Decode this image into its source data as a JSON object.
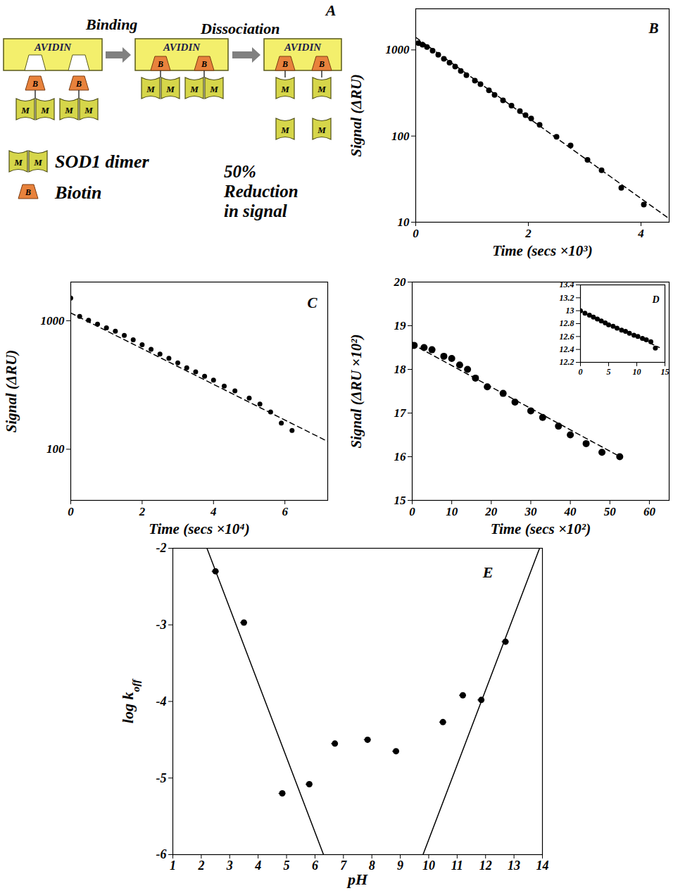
{
  "diagram": {
    "label": "A",
    "steps": [
      "Binding",
      "Dissociation"
    ],
    "protein": "AVIDIN",
    "biotin_mark": "B",
    "monomer_mark": "M",
    "legend": [
      {
        "label": "SOD1 dimer"
      },
      {
        "label": "Biotin"
      }
    ],
    "note": [
      "50%",
      "Reduction",
      "in signal"
    ]
  },
  "chart_data": [
    {
      "title": "B",
      "type": "scatter",
      "xlabel": "Time (secs ×10³)",
      "ylabel": "Signal (ΔRU)",
      "log": "y",
      "grid": false,
      "xlim": [
        0,
        4.5
      ],
      "xticks": [
        0,
        2,
        4
      ],
      "ylim": [
        10,
        3000
      ],
      "yticks": [
        10,
        100,
        1000
      ],
      "series": [
        {
          "type": "scatter",
          "marker": "circle",
          "color": "#000000",
          "x": [
            0.05,
            0.12,
            0.2,
            0.3,
            0.4,
            0.5,
            0.6,
            0.7,
            0.8,
            0.9,
            1.05,
            1.15,
            1.3,
            1.4,
            1.55,
            1.7,
            1.85,
            1.95,
            2.05,
            2.2,
            2.5,
            2.75,
            3.05,
            3.3,
            3.65,
            4.05
          ],
          "values": [
            1200,
            1150,
            1080,
            980,
            880,
            790,
            710,
            640,
            570,
            510,
            440,
            400,
            340,
            300,
            260,
            225,
            195,
            175,
            160,
            135,
            98,
            78,
            53,
            40,
            25,
            16
          ]
        },
        {
          "type": "line",
          "line_style": "dashed",
          "color": "#000000",
          "x": [
            0,
            4.5
          ],
          "values": [
            1400,
            11
          ]
        }
      ]
    },
    {
      "title": "C",
      "type": "scatter",
      "xlabel": "Time (secs ×10⁴)",
      "ylabel": "Signal (ΔRU)",
      "log": "y",
      "grid": false,
      "xlim": [
        0,
        7.2
      ],
      "xticks": [
        0,
        2,
        4,
        6
      ],
      "ylim": [
        40,
        2000
      ],
      "yticks": [
        100,
        1000
      ],
      "series": [
        {
          "type": "scatter",
          "marker": "circle",
          "color": "#000000",
          "x": [
            0,
            0.25,
            0.5,
            0.75,
            1.0,
            1.25,
            1.5,
            1.75,
            2.0,
            2.25,
            2.5,
            2.75,
            3.0,
            3.25,
            3.5,
            3.75,
            4.0,
            4.3,
            4.6,
            5.0,
            5.3,
            5.6,
            5.9,
            6.2
          ],
          "values": [
            1500,
            1080,
            1010,
            940,
            880,
            830,
            770,
            710,
            650,
            600,
            550,
            510,
            470,
            430,
            400,
            370,
            345,
            310,
            285,
            250,
            225,
            195,
            160,
            140
          ]
        },
        {
          "type": "line",
          "line_style": "dashed",
          "color": "#000000",
          "x": [
            0,
            7.2
          ],
          "values": [
            1150,
            115
          ]
        }
      ]
    },
    {
      "type": "scatter",
      "xlabel": "Time (secs ×10²)",
      "ylabel": "Signal (ΔRU ×10²)",
      "grid": false,
      "xlim": [
        0,
        65
      ],
      "xticks": [
        0,
        10,
        20,
        30,
        40,
        50,
        60
      ],
      "ylim": [
        15,
        20
      ],
      "yticks": [
        15,
        16,
        17,
        18,
        19,
        20
      ],
      "series": [
        {
          "type": "scatter",
          "marker": "circle",
          "color": "#000000",
          "x": [
            0,
            0.5,
            3,
            5,
            8,
            10,
            12,
            14,
            16,
            19,
            23,
            26,
            30,
            33,
            37,
            40,
            44,
            48,
            52.5
          ],
          "values": [
            18.55,
            18.55,
            18.5,
            18.45,
            18.3,
            18.25,
            18.1,
            18.0,
            17.8,
            17.6,
            17.45,
            17.25,
            17.05,
            16.9,
            16.7,
            16.5,
            16.3,
            16.1,
            16.0
          ]
        },
        {
          "type": "line",
          "line_style": "dashed",
          "color": "#000000",
          "x": [
            0,
            25,
            53
          ],
          "values": [
            18.58,
            17.35,
            15.98
          ]
        }
      ]
    },
    {
      "title": "D",
      "type": "scatter",
      "grid": false,
      "xlim": [
        0,
        15
      ],
      "xticks": [
        0,
        5,
        10,
        15
      ],
      "ylim": [
        12.2,
        13.4
      ],
      "yticks": [
        12.2,
        12.4,
        12.6,
        12.8,
        13,
        13.2,
        13.4
      ],
      "series": [
        {
          "type": "scatter",
          "marker": "circle",
          "color": "#000000",
          "x": [
            0,
            0.8,
            1.6,
            2.3,
            3,
            3.7,
            4.4,
            5,
            5.8,
            6.5,
            7.3,
            8,
            8.7,
            9.5,
            10.2,
            11,
            11.7,
            12.5,
            13.3
          ],
          "values": [
            13.0,
            12.96,
            12.93,
            12.9,
            12.87,
            12.84,
            12.81,
            12.78,
            12.76,
            12.73,
            12.7,
            12.68,
            12.65,
            12.62,
            12.6,
            12.57,
            12.55,
            12.52,
            12.42
          ]
        },
        {
          "type": "line",
          "line_style": "dashed",
          "color": "#000000",
          "x": [
            0,
            14
          ],
          "values": [
            13.0,
            12.43
          ]
        }
      ]
    },
    {
      "title": "E",
      "type": "scatter",
      "xlabel": "pH",
      "ylabel": "log k",
      "ylabel_subscript": "off",
      "grid": false,
      "xlim": [
        1,
        14
      ],
      "xticks": [
        1,
        2,
        3,
        4,
        5,
        6,
        7,
        8,
        9,
        10,
        11,
        12,
        13,
        14
      ],
      "ylim": [
        -6,
        -2
      ],
      "yticks": [
        -2,
        -3,
        -4,
        -5,
        -6
      ],
      "series": [
        {
          "type": "scatter",
          "marker": "circle",
          "color": "#000000",
          "x": [
            2.5,
            3.5,
            4.85,
            5.8,
            6.7,
            7.85,
            8.85,
            10.5,
            11.2,
            11.85,
            12.7
          ],
          "values": [
            -2.3,
            -2.97,
            -5.2,
            -5.08,
            -4.55,
            -4.5,
            -4.65,
            -4.27,
            -3.92,
            -3.98,
            -3.22
          ],
          "xerr": [
            0.12,
            0.12,
            0.12,
            0.12,
            0.12,
            0.12,
            0.12,
            0.12,
            0.12,
            0.12,
            0.12
          ]
        },
        {
          "type": "line",
          "line_style": "solid",
          "color": "#000000",
          "x": [
            2.2,
            6.3
          ],
          "values": [
            -2,
            -6
          ]
        },
        {
          "type": "line",
          "line_style": "solid",
          "color": "#000000",
          "x": [
            9.8,
            13.9
          ],
          "values": [
            -6,
            -2
          ]
        }
      ]
    }
  ]
}
